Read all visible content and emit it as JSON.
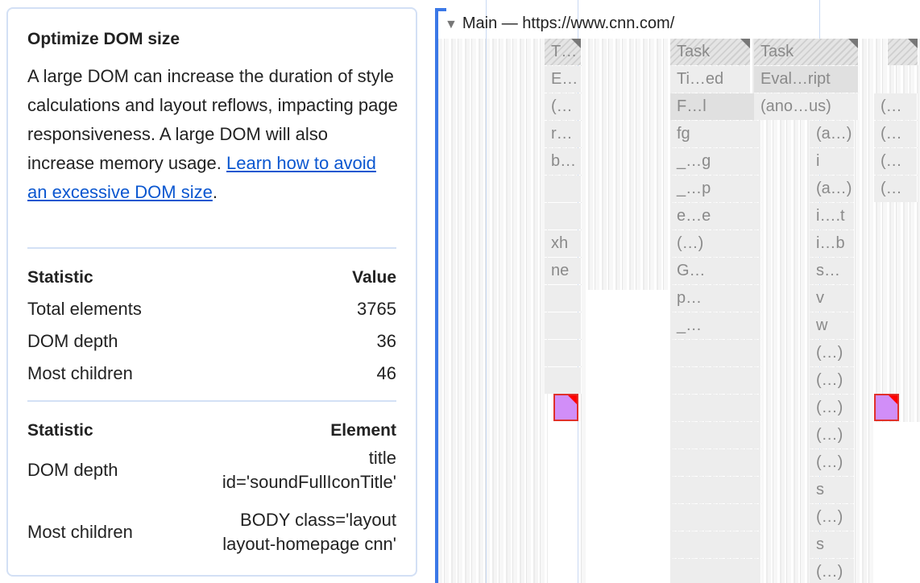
{
  "panel": {
    "title": "Optimize DOM size",
    "description": "A large DOM can increase the duration of style calculations and layout reflows, impacting page responsiveness. A large DOM will also increase memory usage.",
    "link_text": "Learn how to avoid an excessive DOM size",
    "link_suffix": ".",
    "stats_table": {
      "headers": [
        "Statistic",
        "Value"
      ],
      "rows": [
        [
          "Total elements",
          "3765"
        ],
        [
          "DOM depth",
          "36"
        ],
        [
          "Most children",
          "46"
        ]
      ]
    },
    "element_table": {
      "headers": [
        "Statistic",
        "Element"
      ],
      "rows": [
        [
          "DOM depth",
          "title id='soundFullIconTitle'"
        ],
        [
          "Most children",
          "BODY class='layout layout-homepage cnn'"
        ]
      ]
    }
  },
  "flame": {
    "track_title": "Main — https://www.cnn.com/",
    "col_a": [
      "T…",
      "E…",
      "(…",
      "r…",
      "b…",
      "",
      "",
      "xh",
      "ne",
      "",
      "",
      "",
      ""
    ],
    "col_b": [
      "Task",
      "Ti…ed",
      "F…l",
      "fg",
      "_…g",
      "_…p",
      "e…e",
      "(…)",
      "G…",
      "p…",
      "_…",
      "",
      "",
      "",
      "",
      "",
      "",
      "",
      "",
      "",
      ""
    ],
    "col_c_top": [
      "Task",
      "Eval…ript",
      "(ano…us)"
    ],
    "col_c": [
      "(a…)",
      "i",
      "(a…)",
      "i….t",
      "i…b",
      "s…",
      "v",
      "w",
      "(…)",
      "(…)",
      "(…)",
      "(…)",
      "(…)",
      "s",
      "(…)",
      "s",
      "(…)"
    ],
    "col_d": [
      "(…",
      "(…",
      "(…",
      "(…"
    ],
    "colors": {
      "selected": "#d18ef8",
      "warning": "#e0302b",
      "track_accent": "#3b78e7"
    }
  }
}
